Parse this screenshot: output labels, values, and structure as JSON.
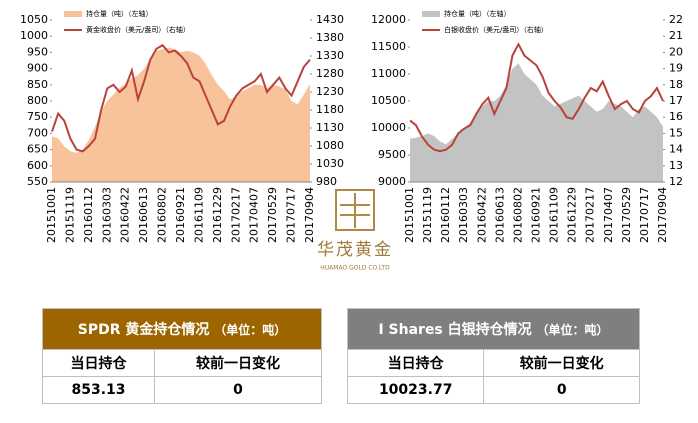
{
  "chart_data": [
    {
      "type": "combo",
      "categories": [
        "20151001",
        null,
        null,
        "20151119",
        null,
        null,
        "20160112",
        null,
        null,
        "20160303",
        null,
        null,
        "20160422",
        null,
        null,
        "20160613",
        null,
        null,
        "20160802",
        null,
        null,
        "20160921",
        null,
        null,
        "20161109",
        null,
        null,
        "20161229",
        null,
        null,
        "20170217",
        null,
        null,
        "20170407",
        null,
        null,
        "20170529",
        null,
        null,
        "20170717",
        null,
        null,
        "20170904"
      ],
      "series": [
        {
          "name": "持仓量（吨）（左轴）",
          "type": "area",
          "color": "#f8c39b",
          "values": [
            690,
            685,
            660,
            645,
            640,
            650,
            680,
            720,
            770,
            800,
            820,
            840,
            855,
            870,
            880,
            900,
            930,
            955,
            960,
            965,
            960,
            950,
            955,
            950,
            940,
            915,
            880,
            850,
            830,
            805,
            815,
            830,
            840,
            850,
            850,
            840,
            850,
            845,
            835,
            800,
            790,
            820,
            853
          ]
        },
        {
          "name": "黄金收盘价（美元/盎司）（右轴）",
          "type": "line",
          "axis": "y2",
          "color": "#b8433d",
          "values": [
            1120,
            1170,
            1150,
            1100,
            1070,
            1065,
            1080,
            1100,
            1180,
            1240,
            1250,
            1230,
            1245,
            1290,
            1210,
            1260,
            1320,
            1350,
            1360,
            1340,
            1345,
            1330,
            1310,
            1270,
            1260,
            1220,
            1180,
            1140,
            1150,
            1190,
            1220,
            1240,
            1250,
            1260,
            1280,
            1230,
            1250,
            1270,
            1240,
            1220,
            1260,
            1300,
            1320
          ]
        }
      ],
      "ylim": [
        550,
        1050
      ],
      "yticks": [
        550,
        600,
        650,
        700,
        750,
        800,
        850,
        900,
        950,
        1000,
        1050
      ],
      "y2lim": [
        980,
        1430
      ],
      "y2ticks": [
        980,
        1030,
        1080,
        1130,
        1180,
        1230,
        1280,
        1330,
        1380,
        1430
      ]
    },
    {
      "type": "combo",
      "categories": [
        "20151001",
        null,
        null,
        "20151119",
        null,
        null,
        "20160112",
        null,
        null,
        "20160303",
        null,
        null,
        "20160422",
        null,
        null,
        "20160613",
        null,
        null,
        "20160802",
        null,
        null,
        "20160921",
        null,
        null,
        "20161109",
        null,
        null,
        "20161229",
        null,
        null,
        "20170217",
        null,
        null,
        "20170407",
        null,
        null,
        "20170529",
        null,
        null,
        "20170717",
        null,
        null,
        "20170904"
      ],
      "series": [
        {
          "name": "持仓量（吨）（左轴）",
          "type": "area",
          "color": "#c3c3c3",
          "values": [
            9800,
            9820,
            9850,
            9900,
            9850,
            9750,
            9700,
            9800,
            9900,
            10000,
            10100,
            10300,
            10400,
            10500,
            10500,
            10600,
            10800,
            11100,
            11200,
            11000,
            10900,
            10800,
            10600,
            10500,
            10400,
            10450,
            10500,
            10550,
            10600,
            10500,
            10400,
            10300,
            10350,
            10500,
            10450,
            10400,
            10300,
            10200,
            10350,
            10400,
            10300,
            10200,
            10024
          ]
        },
        {
          "name": "白银收盘价（美元/盎司）（右轴）",
          "type": "line",
          "axis": "y2",
          "color": "#b8433d",
          "values": [
            15.8,
            15.5,
            14.8,
            14.3,
            14.0,
            13.9,
            14.0,
            14.3,
            15.0,
            15.3,
            15.5,
            16.2,
            16.8,
            17.2,
            16.2,
            17.0,
            17.8,
            19.8,
            20.5,
            19.8,
            19.5,
            19.2,
            18.5,
            17.5,
            17.0,
            16.6,
            16.0,
            15.9,
            16.5,
            17.2,
            17.8,
            17.6,
            18.2,
            17.3,
            16.5,
            16.8,
            17.0,
            16.5,
            16.3,
            17.0,
            17.3,
            17.8,
            17.0
          ]
        }
      ],
      "ylim": [
        9000,
        12000
      ],
      "yticks": [
        9000,
        9500,
        10000,
        10500,
        11000,
        11500,
        12000
      ],
      "y2lim": [
        12,
        22
      ],
      "y2ticks": [
        12,
        13,
        14,
        15,
        16,
        17,
        18,
        19,
        20,
        21,
        22
      ]
    }
  ],
  "logo": {
    "name": "华茂黄金",
    "sub": "HUAMAO GOLD CO.LTD"
  },
  "tables": [
    {
      "title": "SPDR 黄金持仓情况",
      "unit": "（单位：吨）",
      "header": [
        "当日持仓",
        "较前一日变化"
      ],
      "row": [
        "853.13",
        "0"
      ]
    },
    {
      "title": "I Shares 白银持仓情况",
      "unit": "（单位：吨）",
      "header": [
        "当日持仓",
        "较前一日变化"
      ],
      "row": [
        "10023.77",
        "0"
      ]
    }
  ]
}
